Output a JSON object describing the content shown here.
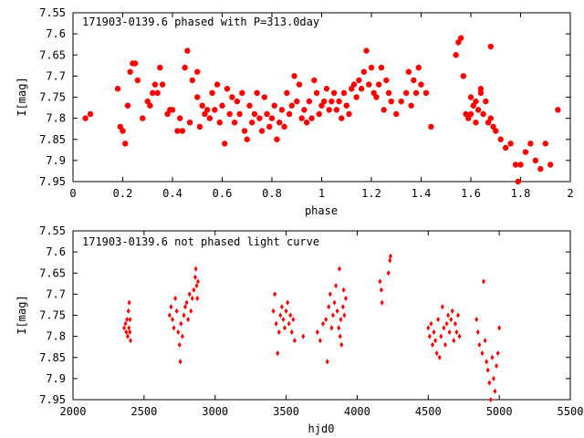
{
  "chart_data": [
    {
      "type": "scatter",
      "title": "171903-0139.6 phased with P=313.0day",
      "xlabel": "phase",
      "ylabel": "I[mag]",
      "xlim": [
        0,
        2
      ],
      "ylim": [
        7.55,
        7.95
      ],
      "y_inverted": true,
      "x_ticks": [
        0,
        0.2,
        0.4,
        0.6,
        0.8,
        1,
        1.2,
        1.4,
        1.6,
        1.8,
        2
      ],
      "x_tick_labels": [
        "0",
        "0.2",
        "0.4",
        "0.6",
        "0.8",
        "1",
        "1.2",
        "1.4",
        "1.6",
        "1.8",
        "2"
      ],
      "y_ticks": [
        7.55,
        7.6,
        7.65,
        7.7,
        7.75,
        7.8,
        7.85,
        7.9,
        7.95
      ],
      "y_tick_labels": [
        "7.55",
        "7.6",
        "7.65",
        "7.7",
        "7.75",
        "7.8",
        "7.85",
        "7.9",
        "7.95"
      ],
      "marker": "filled-circle-large",
      "color": "#ff0000",
      "points": [
        [
          0.05,
          7.8
        ],
        [
          0.07,
          7.79
        ],
        [
          0.18,
          7.73
        ],
        [
          0.19,
          7.82
        ],
        [
          0.2,
          7.83
        ],
        [
          0.21,
          7.86
        ],
        [
          0.22,
          7.77
        ],
        [
          0.23,
          7.69
        ],
        [
          0.24,
          7.67
        ],
        [
          0.25,
          7.67
        ],
        [
          0.26,
          7.71
        ],
        [
          0.28,
          7.8
        ],
        [
          0.3,
          7.76
        ],
        [
          0.31,
          7.77
        ],
        [
          0.32,
          7.74
        ],
        [
          0.33,
          7.72
        ],
        [
          0.34,
          7.74
        ],
        [
          0.35,
          7.68
        ],
        [
          0.36,
          7.72
        ],
        [
          0.38,
          7.79
        ],
        [
          0.39,
          7.78
        ],
        [
          0.4,
          7.78
        ],
        [
          0.42,
          7.83
        ],
        [
          0.43,
          7.8
        ],
        [
          0.44,
          7.83
        ],
        [
          0.45,
          7.68
        ],
        [
          0.46,
          7.64
        ],
        [
          0.47,
          7.81
        ],
        [
          0.48,
          7.71
        ],
        [
          0.5,
          7.69
        ],
        [
          0.5,
          7.75
        ],
        [
          0.51,
          7.82
        ],
        [
          0.52,
          7.77
        ],
        [
          0.53,
          7.79
        ],
        [
          0.54,
          7.78
        ],
        [
          0.55,
          7.8
        ],
        [
          0.56,
          7.74
        ],
        [
          0.57,
          7.78
        ],
        [
          0.58,
          7.72
        ],
        [
          0.59,
          7.81
        ],
        [
          0.6,
          7.77
        ],
        [
          0.61,
          7.86
        ],
        [
          0.62,
          7.73
        ],
        [
          0.63,
          7.79
        ],
        [
          0.64,
          7.75
        ],
        [
          0.65,
          7.81
        ],
        [
          0.66,
          7.76
        ],
        [
          0.67,
          7.79
        ],
        [
          0.68,
          7.74
        ],
        [
          0.69,
          7.83
        ],
        [
          0.7,
          7.85
        ],
        [
          0.71,
          7.77
        ],
        [
          0.72,
          7.81
        ],
        [
          0.73,
          7.79
        ],
        [
          0.74,
          7.74
        ],
        [
          0.75,
          7.8
        ],
        [
          0.76,
          7.83
        ],
        [
          0.77,
          7.75
        ],
        [
          0.78,
          7.79
        ],
        [
          0.79,
          7.82
        ],
        [
          0.8,
          7.8
        ],
        [
          0.81,
          7.77
        ],
        [
          0.82,
          7.85
        ],
        [
          0.83,
          7.81
        ],
        [
          0.84,
          7.78
        ],
        [
          0.85,
          7.82
        ],
        [
          0.86,
          7.74
        ],
        [
          0.87,
          7.79
        ],
        [
          0.88,
          7.77
        ],
        [
          0.89,
          7.7
        ],
        [
          0.9,
          7.76
        ],
        [
          0.91,
          7.72
        ],
        [
          0.92,
          7.8
        ],
        [
          0.93,
          7.78
        ],
        [
          0.94,
          7.81
        ],
        [
          0.95,
          7.76
        ],
        [
          0.96,
          7.8
        ],
        [
          0.97,
          7.71
        ],
        [
          0.98,
          7.74
        ],
        [
          0.99,
          7.79
        ],
        [
          1.0,
          7.77
        ],
        [
          1.01,
          7.76
        ],
        [
          1.02,
          7.73
        ],
        [
          1.03,
          7.78
        ],
        [
          1.04,
          7.76
        ],
        [
          1.05,
          7.74
        ],
        [
          1.06,
          7.78
        ],
        [
          1.07,
          7.76
        ],
        [
          1.08,
          7.8
        ],
        [
          1.09,
          7.74
        ],
        [
          1.1,
          7.77
        ],
        [
          1.11,
          7.79
        ],
        [
          1.12,
          7.73
        ],
        [
          1.13,
          7.72
        ],
        [
          1.14,
          7.75
        ],
        [
          1.15,
          7.71
        ],
        [
          1.16,
          7.73
        ],
        [
          1.17,
          7.69
        ],
        [
          1.18,
          7.64
        ],
        [
          1.19,
          7.72
        ],
        [
          1.2,
          7.68
        ],
        [
          1.21,
          7.74
        ],
        [
          1.22,
          7.75
        ],
        [
          1.23,
          7.72
        ],
        [
          1.24,
          7.68
        ],
        [
          1.25,
          7.78
        ],
        [
          1.26,
          7.71
        ],
        [
          1.27,
          7.74
        ],
        [
          1.28,
          7.76
        ],
        [
          1.3,
          7.79
        ],
        [
          1.32,
          7.76
        ],
        [
          1.34,
          7.74
        ],
        [
          1.35,
          7.69
        ],
        [
          1.36,
          7.77
        ],
        [
          1.37,
          7.71
        ],
        [
          1.38,
          7.74
        ],
        [
          1.39,
          7.68
        ],
        [
          1.4,
          7.72
        ],
        [
          1.42,
          7.74
        ],
        [
          1.44,
          7.82
        ],
        [
          1.54,
          7.65
        ],
        [
          1.55,
          7.62
        ],
        [
          1.56,
          7.61
        ],
        [
          1.57,
          7.7
        ],
        [
          1.58,
          7.79
        ],
        [
          1.59,
          7.8
        ],
        [
          1.6,
          7.75
        ],
        [
          1.61,
          7.77
        ],
        [
          1.62,
          7.76
        ],
        [
          1.63,
          7.78
        ],
        [
          1.64,
          7.74
        ],
        [
          1.65,
          7.79
        ],
        [
          1.66,
          7.76
        ],
        [
          1.67,
          7.81
        ],
        [
          1.68,
          7.8
        ],
        [
          1.69,
          7.82
        ],
        [
          1.7,
          7.83
        ],
        [
          1.72,
          7.85
        ],
        [
          1.74,
          7.87
        ],
        [
          1.76,
          7.86
        ],
        [
          1.78,
          7.91
        ],
        [
          1.79,
          7.95
        ],
        [
          1.8,
          7.91
        ],
        [
          1.82,
          7.88
        ],
        [
          1.84,
          7.86
        ],
        [
          1.86,
          7.9
        ],
        [
          1.88,
          7.92
        ],
        [
          1.9,
          7.86
        ],
        [
          1.92,
          7.91
        ],
        [
          1.95,
          7.78
        ],
        [
          1.68,
          7.63
        ],
        [
          1.64,
          7.73
        ],
        [
          1.62,
          7.81
        ],
        [
          1.6,
          7.79
        ]
      ]
    },
    {
      "type": "scatter",
      "title": "171903-0139.6 not phased light curve",
      "xlabel": "hjd0",
      "ylabel": "I[mag]",
      "xlim": [
        2000,
        5500
      ],
      "ylim": [
        7.55,
        7.95
      ],
      "y_inverted": true,
      "x_ticks": [
        2000,
        2500,
        3000,
        3500,
        4000,
        4500,
        5000,
        5500
      ],
      "x_tick_labels": [
        "2000",
        "2500",
        "3000",
        "3500",
        "4000",
        "4500",
        "5000",
        "5500"
      ],
      "y_ticks": [
        7.55,
        7.6,
        7.65,
        7.7,
        7.75,
        7.8,
        7.85,
        7.9,
        7.95
      ],
      "y_tick_labels": [
        "7.55",
        "7.6",
        "7.65",
        "7.7",
        "7.75",
        "7.8",
        "7.85",
        "7.9",
        "7.95"
      ],
      "marker": "filled-diamond-small",
      "color": "#ff0000",
      "points": [
        [
          2360,
          7.78
        ],
        [
          2370,
          7.77
        ],
        [
          2375,
          7.79
        ],
        [
          2380,
          7.76
        ],
        [
          2385,
          7.8
        ],
        [
          2390,
          7.74
        ],
        [
          2393,
          7.78
        ],
        [
          2396,
          7.72
        ],
        [
          2400,
          7.79
        ],
        [
          2402,
          7.76
        ],
        [
          2405,
          7.81
        ],
        [
          2680,
          7.75
        ],
        [
          2690,
          7.73
        ],
        [
          2700,
          7.76
        ],
        [
          2710,
          7.78
        ],
        [
          2720,
          7.71
        ],
        [
          2730,
          7.74
        ],
        [
          2740,
          7.79
        ],
        [
          2750,
          7.82
        ],
        [
          2755,
          7.86
        ],
        [
          2760,
          7.77
        ],
        [
          2770,
          7.8
        ],
        [
          2780,
          7.75
        ],
        [
          2790,
          7.73
        ],
        [
          2800,
          7.72
        ],
        [
          2810,
          7.76
        ],
        [
          2820,
          7.7
        ],
        [
          2830,
          7.74
        ],
        [
          2840,
          7.71
        ],
        [
          2850,
          7.69
        ],
        [
          2860,
          7.66
        ],
        [
          2865,
          7.64
        ],
        [
          2870,
          7.68
        ],
        [
          2875,
          7.71
        ],
        [
          2880,
          7.67
        ],
        [
          3410,
          7.74
        ],
        [
          3420,
          7.7
        ],
        [
          3430,
          7.77
        ],
        [
          3440,
          7.84
        ],
        [
          3450,
          7.79
        ],
        [
          3460,
          7.75
        ],
        [
          3470,
          7.73
        ],
        [
          3480,
          7.76
        ],
        [
          3490,
          7.78
        ],
        [
          3500,
          7.74
        ],
        [
          3510,
          7.72
        ],
        [
          3520,
          7.77
        ],
        [
          3530,
          7.75
        ],
        [
          3540,
          7.79
        ],
        [
          3550,
          7.76
        ],
        [
          3560,
          7.81
        ],
        [
          3620,
          7.8
        ],
        [
          3720,
          7.79
        ],
        [
          3740,
          7.81
        ],
        [
          3760,
          7.77
        ],
        [
          3780,
          7.76
        ],
        [
          3790,
          7.86
        ],
        [
          3800,
          7.73
        ],
        [
          3810,
          7.7
        ],
        [
          3820,
          7.78
        ],
        [
          3830,
          7.75
        ],
        [
          3840,
          7.72
        ],
        [
          3850,
          7.68
        ],
        [
          3860,
          7.74
        ],
        [
          3870,
          7.78
        ],
        [
          3875,
          7.64
        ],
        [
          3880,
          7.8
        ],
        [
          3885,
          7.76
        ],
        [
          3890,
          7.82
        ],
        [
          3900,
          7.73
        ],
        [
          3905,
          7.69
        ],
        [
          3910,
          7.75
        ],
        [
          3920,
          7.71
        ],
        [
          4160,
          7.67
        ],
        [
          4170,
          7.69
        ],
        [
          4175,
          7.72
        ],
        [
          4220,
          7.65
        ],
        [
          4230,
          7.62
        ],
        [
          4235,
          7.61
        ],
        [
          4500,
          7.78
        ],
        [
          4510,
          7.8
        ],
        [
          4520,
          7.77
        ],
        [
          4530,
          7.82
        ],
        [
          4540,
          7.79
        ],
        [
          4550,
          7.81
        ],
        [
          4560,
          7.84
        ],
        [
          4570,
          7.76
        ],
        [
          4580,
          7.85
        ],
        [
          4590,
          7.8
        ],
        [
          4600,
          7.73
        ],
        [
          4610,
          7.78
        ],
        [
          4620,
          7.82
        ],
        [
          4630,
          7.77
        ],
        [
          4640,
          7.75
        ],
        [
          4650,
          7.79
        ],
        [
          4660,
          7.76
        ],
        [
          4670,
          7.74
        ],
        [
          4680,
          7.81
        ],
        [
          4690,
          7.77
        ],
        [
          4700,
          7.79
        ],
        [
          4710,
          7.75
        ],
        [
          4720,
          7.8
        ],
        [
          4840,
          7.76
        ],
        [
          4850,
          7.79
        ],
        [
          4860,
          7.82
        ],
        [
          4880,
          7.84
        ],
        [
          4890,
          7.67
        ],
        [
          4900,
          7.81
        ],
        [
          4910,
          7.86
        ],
        [
          4920,
          7.88
        ],
        [
          4930,
          7.91
        ],
        [
          4940,
          7.95
        ],
        [
          4950,
          7.85
        ],
        [
          4960,
          7.9
        ],
        [
          4970,
          7.93
        ],
        [
          4980,
          7.87
        ],
        [
          4990,
          7.84
        ],
        [
          5000,
          7.78
        ]
      ]
    }
  ]
}
